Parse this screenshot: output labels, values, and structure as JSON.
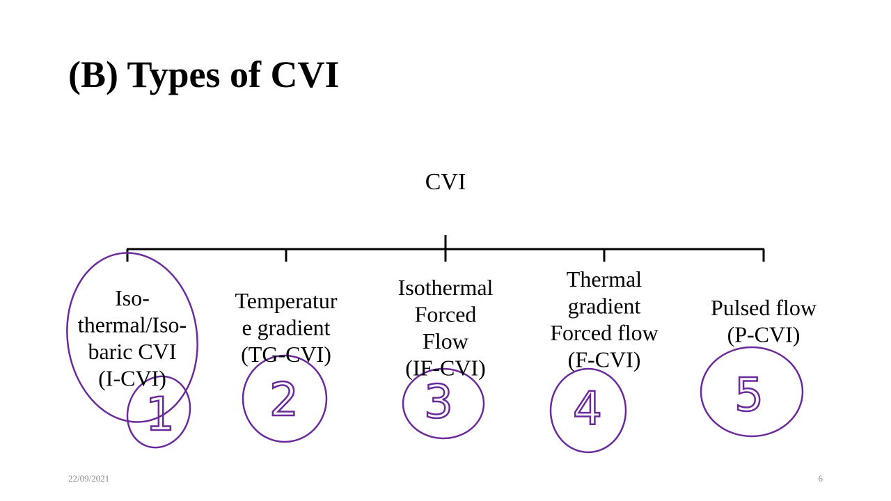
{
  "title": "(B) Types of CVI",
  "root": {
    "label": "CVI"
  },
  "nodes": [
    {
      "lines": [
        "Iso-",
        "thermal/Iso-",
        "baric CVI",
        "(I-CVI)"
      ]
    },
    {
      "lines": [
        "Temperatur",
        "e gradient",
        "(TG-CVI)"
      ]
    },
    {
      "lines": [
        "Isothermal",
        "Forced",
        "Flow",
        "(IF-CVI)"
      ]
    },
    {
      "lines": [
        "Thermal",
        "gradient",
        "Forced flow",
        "(F-CVI)"
      ]
    },
    {
      "lines": [
        "Pulsed flow",
        "(P-CVI)"
      ]
    }
  ],
  "ink_labels": [
    "1",
    "2",
    "3",
    "4",
    "5"
  ],
  "footer": {
    "date": "22/09/2021",
    "page": "6"
  }
}
